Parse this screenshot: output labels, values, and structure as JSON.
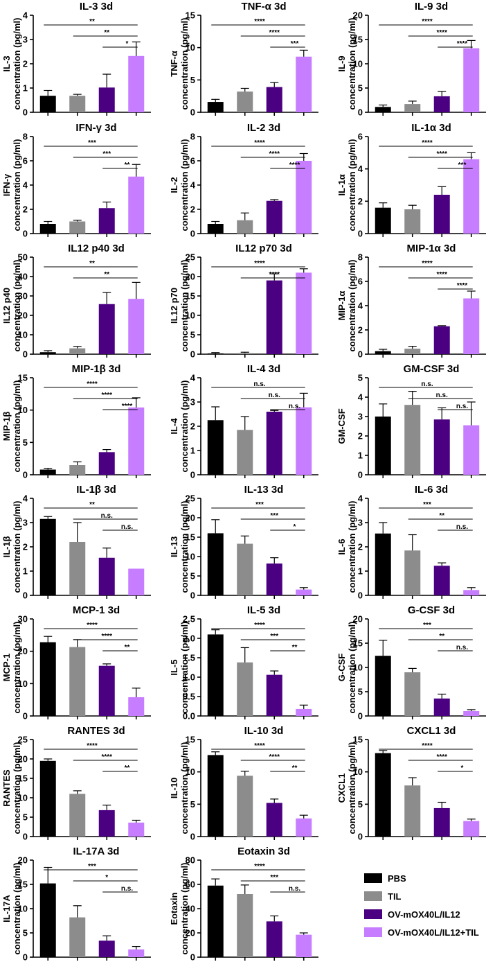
{
  "legend": [
    {
      "label": "PBS",
      "color": "#000000"
    },
    {
      "label": "TIL",
      "color": "#8c8c8c"
    },
    {
      "label": "OV-mOX40L/IL12",
      "color": "#4b0082"
    },
    {
      "label": "OV-mOX40L/IL12+TIL",
      "color": "#c77dff"
    }
  ],
  "chart_data": [
    {
      "type": "bar",
      "title": "IL-3 3d",
      "ylabel": [
        "IL-3",
        "concentration (pg/ml)"
      ],
      "categories": [
        "PBS",
        "TIL",
        "OV-mOX40L/IL12",
        "OV-mOX40L/IL12+TIL"
      ],
      "ylim": [
        0,
        4
      ],
      "yticks": [
        0,
        1,
        2,
        3,
        4
      ],
      "values": [
        0.68,
        0.68,
        1.02,
        2.32
      ],
      "errors": [
        0.22,
        0.06,
        0.55,
        0.58
      ],
      "sig": [
        {
          "from": 0,
          "to": 3,
          "label": "**"
        },
        {
          "from": 1,
          "to": 3,
          "label": "**"
        },
        {
          "from": 2,
          "to": 3,
          "label": "*"
        }
      ]
    },
    {
      "type": "bar",
      "title": "TNF-α 3d",
      "ylabel": [
        "TNF-α",
        "concentration (pg/ml)"
      ],
      "categories": [
        "PBS",
        "TIL",
        "OV-mOX40L/IL12",
        "OV-mOX40L/IL12+TIL"
      ],
      "ylim": [
        0,
        15
      ],
      "yticks": [
        0,
        5,
        10,
        15
      ],
      "values": [
        1.6,
        3.2,
        3.9,
        8.6
      ],
      "errors": [
        0.4,
        0.5,
        0.7,
        1.0
      ],
      "sig": [
        {
          "from": 0,
          "to": 3,
          "label": "****"
        },
        {
          "from": 1,
          "to": 3,
          "label": "****"
        },
        {
          "from": 2,
          "to": 3,
          "label": "***"
        }
      ]
    },
    {
      "type": "bar",
      "title": "IL-9 3d",
      "ylabel": [
        "IL-9",
        "concentration (pg/ml)"
      ],
      "categories": [
        "PBS",
        "TIL",
        "OV-mOX40L/IL12",
        "OV-mOX40L/IL12+TIL"
      ],
      "ylim": [
        0,
        20
      ],
      "yticks": [
        0,
        5,
        10,
        15,
        20
      ],
      "values": [
        1.1,
        1.7,
        3.3,
        13.2
      ],
      "errors": [
        0.4,
        0.6,
        1.0,
        1.6
      ],
      "sig": [
        {
          "from": 0,
          "to": 3,
          "label": "****"
        },
        {
          "from": 1,
          "to": 3,
          "label": "****"
        },
        {
          "from": 2,
          "to": 3,
          "label": "****"
        }
      ]
    },
    {
      "type": "bar",
      "title": "IFN-γ 3d",
      "ylabel": [
        "IFN-γ",
        "concentration (pg/ml)"
      ],
      "categories": [
        "PBS",
        "TIL",
        "OV-mOX40L/IL12",
        "OV-mOX40L/IL12+TIL"
      ],
      "ylim": [
        0,
        8
      ],
      "yticks": [
        0,
        2,
        4,
        6,
        8
      ],
      "values": [
        0.8,
        1.0,
        2.1,
        4.7
      ],
      "errors": [
        0.2,
        0.1,
        0.5,
        1.0
      ],
      "sig": [
        {
          "from": 0,
          "to": 3,
          "label": "***"
        },
        {
          "from": 1,
          "to": 3,
          "label": "***"
        },
        {
          "from": 2,
          "to": 3,
          "label": "**"
        }
      ]
    },
    {
      "type": "bar",
      "title": "IL-2 3d",
      "ylabel": [
        "IL-2",
        "concentration (pg/ml)"
      ],
      "categories": [
        "PBS",
        "TIL",
        "OV-mOX40L/IL12",
        "OV-mOX40L/IL12+TIL"
      ],
      "ylim": [
        0,
        8
      ],
      "yticks": [
        0,
        2,
        4,
        6,
        8
      ],
      "values": [
        0.8,
        1.1,
        2.7,
        6.0
      ],
      "errors": [
        0.2,
        0.6,
        0.1,
        0.6
      ],
      "sig": [
        {
          "from": 0,
          "to": 3,
          "label": "****"
        },
        {
          "from": 1,
          "to": 3,
          "label": "****"
        },
        {
          "from": 2,
          "to": 3,
          "label": "****"
        }
      ]
    },
    {
      "type": "bar",
      "title": "IL-1α 3d",
      "ylabel": [
        "IL-1α",
        "concentration (pg/ml)"
      ],
      "categories": [
        "PBS",
        "TIL",
        "OV-mOX40L/IL12",
        "OV-mOX40L/IL12+TIL"
      ],
      "ylim": [
        0,
        6
      ],
      "yticks": [
        0,
        2,
        4,
        6
      ],
      "values": [
        1.6,
        1.5,
        2.4,
        4.6
      ],
      "errors": [
        0.3,
        0.25,
        0.5,
        0.4
      ],
      "sig": [
        {
          "from": 0,
          "to": 3,
          "label": "****"
        },
        {
          "from": 1,
          "to": 3,
          "label": "****"
        },
        {
          "from": 2,
          "to": 3,
          "label": "***"
        }
      ]
    },
    {
      "type": "bar",
      "title": "IL12 p40 3d",
      "ylabel": [
        "IL12 p40",
        "concentration (pg/ml)"
      ],
      "categories": [
        "PBS",
        "TIL",
        "OV-mOX40L/IL12",
        "OV-mOX40L/IL12+TIL"
      ],
      "ylim": [
        0,
        50
      ],
      "yticks": [
        0,
        10,
        20,
        30,
        40,
        50
      ],
      "values": [
        1.0,
        3.0,
        25.8,
        28.5
      ],
      "errors": [
        0.8,
        1.0,
        6.0,
        8.5
      ],
      "sig": [
        {
          "from": 0,
          "to": 3,
          "label": "**"
        },
        {
          "from": 1,
          "to": 3,
          "label": "**"
        }
      ]
    },
    {
      "type": "bar",
      "title": "IL12 p70 3d",
      "ylabel": [
        "IL12 p70",
        "concentration (pg/ml)"
      ],
      "categories": [
        "PBS",
        "TIL",
        "OV-mOX40L/IL12",
        "OV-mOX40L/IL12+TIL"
      ],
      "ylim": [
        0,
        25
      ],
      "yticks": [
        0,
        5,
        10,
        15,
        20,
        25
      ],
      "values": [
        0.2,
        0.3,
        19.0,
        21.0
      ],
      "errors": [
        0.2,
        0.2,
        1.7,
        1.0
      ],
      "sig": [
        {
          "from": 0,
          "to": 3,
          "label": "****"
        },
        {
          "from": 1,
          "to": 3,
          "label": "****"
        }
      ]
    },
    {
      "type": "bar",
      "title": "MIP-1α 3d",
      "ylabel": [
        "MIP-1α",
        "concentration (pg/ml)"
      ],
      "categories": [
        "PBS",
        "TIL",
        "OV-mOX40L/IL12",
        "OV-mOX40L/IL12+TIL"
      ],
      "ylim": [
        0,
        8
      ],
      "yticks": [
        0,
        2,
        4,
        6,
        8
      ],
      "values": [
        0.25,
        0.45,
        2.3,
        4.6
      ],
      "errors": [
        0.15,
        0.2,
        0.05,
        0.6
      ],
      "sig": [
        {
          "from": 0,
          "to": 3,
          "label": "****"
        },
        {
          "from": 1,
          "to": 3,
          "label": "****"
        },
        {
          "from": 2,
          "to": 3,
          "label": "****"
        }
      ]
    },
    {
      "type": "bar",
      "title": "MIP-1β 3d",
      "ylabel": [
        "MIP-1β",
        "concentration (pg/ml)"
      ],
      "categories": [
        "PBS",
        "TIL",
        "OV-mOX40L/IL12",
        "OV-mOX40L/IL12+TIL"
      ],
      "ylim": [
        0,
        15
      ],
      "yticks": [
        0,
        5,
        10,
        15
      ],
      "values": [
        0.8,
        1.5,
        3.5,
        10.4
      ],
      "errors": [
        0.2,
        0.5,
        0.4,
        1.5
      ],
      "sig": [
        {
          "from": 0,
          "to": 3,
          "label": "****"
        },
        {
          "from": 1,
          "to": 3,
          "label": "****"
        },
        {
          "from": 2,
          "to": 3,
          "label": "****"
        }
      ]
    },
    {
      "type": "bar",
      "title": "IL-4 3d",
      "ylabel": [
        "IL-4",
        "concentration (pg/ml)"
      ],
      "categories": [
        "PBS",
        "TIL",
        "OV-mOX40L/IL12",
        "OV-mOX40L/IL12+TIL"
      ],
      "ylim": [
        0,
        4
      ],
      "yticks": [
        0,
        1,
        2,
        3,
        4
      ],
      "values": [
        2.25,
        1.85,
        2.6,
        2.78
      ],
      "errors": [
        0.55,
        0.55,
        0.05,
        0.58
      ],
      "sig": [
        {
          "from": 0,
          "to": 3,
          "label": "n.s."
        },
        {
          "from": 1,
          "to": 3,
          "label": "n.s."
        },
        {
          "from": 2,
          "to": 3,
          "label": "n.s."
        }
      ]
    },
    {
      "type": "bar",
      "title": "GM-CSF 3d",
      "ylabel": [
        "GM-CSF",
        ""
      ],
      "categories": [
        "PBS",
        "TIL",
        "OV-mOX40L/IL12",
        "OV-mOX40L/IL12+TIL"
      ],
      "ylim": [
        0,
        5
      ],
      "yticks": [
        0,
        1,
        2,
        3,
        4,
        5
      ],
      "values": [
        3.0,
        3.6,
        2.85,
        2.55
      ],
      "errors": [
        0.65,
        0.7,
        0.6,
        1.2
      ],
      "sig": [
        {
          "from": 0,
          "to": 3,
          "label": "n.s."
        },
        {
          "from": 1,
          "to": 3,
          "label": "n.s."
        },
        {
          "from": 2,
          "to": 3,
          "label": "n.s."
        }
      ]
    },
    {
      "type": "bar",
      "title": "IL-1β 3d",
      "ylabel": [
        "IL-1β",
        "concentration (pg/ml)"
      ],
      "categories": [
        "PBS",
        "TIL",
        "OV-mOX40L/IL12",
        "OV-mOX40L/IL12+TIL"
      ],
      "ylim": [
        0,
        4
      ],
      "yticks": [
        0,
        1,
        2,
        3,
        4
      ],
      "values": [
        3.15,
        2.2,
        1.55,
        1.1
      ],
      "errors": [
        0.1,
        0.8,
        0.4,
        0.0
      ],
      "sig": [
        {
          "from": 0,
          "to": 3,
          "label": "**"
        },
        {
          "from": 1,
          "to": 3,
          "label": "n.s."
        },
        {
          "from": 2,
          "to": 3,
          "label": "n.s."
        }
      ]
    },
    {
      "type": "bar",
      "title": "IL-13 3d",
      "ylabel": [
        "IL-13",
        "concentration (pg/ml)"
      ],
      "categories": [
        "PBS",
        "TIL",
        "OV-mOX40L/IL12",
        "OV-mOX40L/IL12+TIL"
      ],
      "ylim": [
        0,
        25
      ],
      "yticks": [
        0,
        5,
        10,
        15,
        20,
        25
      ],
      "values": [
        16.0,
        13.3,
        8.2,
        1.5
      ],
      "errors": [
        3.5,
        2.0,
        1.5,
        0.5
      ],
      "sig": [
        {
          "from": 0,
          "to": 3,
          "label": "***"
        },
        {
          "from": 1,
          "to": 3,
          "label": "***"
        },
        {
          "from": 2,
          "to": 3,
          "label": "*"
        }
      ]
    },
    {
      "type": "bar",
      "title": "IL-6 3d",
      "ylabel": [
        "IL-6",
        "concentration (pg/ml)"
      ],
      "categories": [
        "PBS",
        "TIL",
        "OV-mOX40L/IL12",
        "OV-mOX40L/IL12+TIL"
      ],
      "ylim": [
        0,
        4
      ],
      "yticks": [
        0,
        1,
        2,
        3,
        4
      ],
      "values": [
        2.55,
        1.85,
        1.22,
        0.22
      ],
      "errors": [
        0.45,
        0.65,
        0.12,
        0.1
      ],
      "sig": [
        {
          "from": 0,
          "to": 3,
          "label": "***"
        },
        {
          "from": 1,
          "to": 3,
          "label": "**"
        },
        {
          "from": 2,
          "to": 3,
          "label": "n.s."
        }
      ]
    },
    {
      "type": "bar",
      "title": "MCP-1 3d",
      "ylabel": [
        "MCP-1",
        "concentration (pg/ml)"
      ],
      "categories": [
        "PBS",
        "TIL",
        "OV-mOX40L/IL12",
        "OV-mOX40L/IL12+TIL"
      ],
      "ylim": [
        0,
        30
      ],
      "yticks": [
        0,
        10,
        20,
        30
      ],
      "values": [
        22.8,
        21.3,
        15.5,
        5.8
      ],
      "errors": [
        1.8,
        2.3,
        0.6,
        2.8
      ],
      "sig": [
        {
          "from": 0,
          "to": 3,
          "label": "****"
        },
        {
          "from": 1,
          "to": 3,
          "label": "****"
        },
        {
          "from": 2,
          "to": 3,
          "label": "**"
        }
      ]
    },
    {
      "type": "bar",
      "title": "IL-5 3d",
      "ylabel": [
        "IL-5",
        "concentration (pg/ml)"
      ],
      "categories": [
        "PBS",
        "TIL",
        "OV-mOX40L/IL12",
        "OV-mOX40L/IL12+TIL"
      ],
      "ylim": [
        0,
        2.5
      ],
      "yticks": [
        0.0,
        0.5,
        1.0,
        1.5,
        2.0,
        2.5
      ],
      "tickdecimals": 1,
      "values": [
        2.1,
        1.38,
        1.06,
        0.18
      ],
      "errors": [
        0.12,
        0.38,
        0.1,
        0.1
      ],
      "sig": [
        {
          "from": 0,
          "to": 3,
          "label": "****"
        },
        {
          "from": 1,
          "to": 3,
          "label": "***"
        },
        {
          "from": 2,
          "to": 3,
          "label": "**"
        }
      ]
    },
    {
      "type": "bar",
      "title": "G-CSF 3d",
      "ylabel": [
        "G-CSF",
        "concentration (pg/ml)"
      ],
      "categories": [
        "PBS",
        "TIL",
        "OV-mOX40L/IL12",
        "OV-mOX40L/IL12+TIL"
      ],
      "ylim": [
        0,
        20
      ],
      "yticks": [
        0,
        5,
        10,
        15,
        20
      ],
      "values": [
        12.4,
        9.0,
        3.6,
        1.0
      ],
      "errors": [
        3.2,
        0.8,
        0.9,
        0.3
      ],
      "sig": [
        {
          "from": 0,
          "to": 3,
          "label": "***"
        },
        {
          "from": 1,
          "to": 3,
          "label": "**"
        },
        {
          "from": 2,
          "to": 3,
          "label": "n.s."
        }
      ]
    },
    {
      "type": "bar",
      "title": "RANTES 3d",
      "ylabel": [
        "RANTES",
        "concentration (pg/ml)"
      ],
      "categories": [
        "PBS",
        "TIL",
        "OV-mOX40L/IL12",
        "OV-mOX40L/IL12+TIL"
      ],
      "ylim": [
        0,
        25
      ],
      "yticks": [
        0,
        5,
        10,
        15,
        20,
        25
      ],
      "values": [
        19.5,
        11.0,
        6.8,
        3.6
      ],
      "errors": [
        0.5,
        0.8,
        1.3,
        0.6
      ],
      "sig": [
        {
          "from": 0,
          "to": 3,
          "label": "****"
        },
        {
          "from": 1,
          "to": 3,
          "label": "****"
        },
        {
          "from": 2,
          "to": 3,
          "label": "**"
        }
      ]
    },
    {
      "type": "bar",
      "title": "IL-10 3d",
      "ylabel": [
        "IL-10",
        "concentration (pg/ml)"
      ],
      "categories": [
        "PBS",
        "TIL",
        "OV-mOX40L/IL12",
        "OV-mOX40L/IL12+TIL"
      ],
      "ylim": [
        0,
        15
      ],
      "yticks": [
        0,
        5,
        10,
        15
      ],
      "values": [
        12.6,
        9.4,
        5.2,
        2.8
      ],
      "errors": [
        0.5,
        0.7,
        0.6,
        0.5
      ],
      "sig": [
        {
          "from": 0,
          "to": 3,
          "label": "****"
        },
        {
          "from": 1,
          "to": 3,
          "label": "****"
        },
        {
          "from": 2,
          "to": 3,
          "label": "**"
        }
      ]
    },
    {
      "type": "bar",
      "title": "CXCL1 3d",
      "ylabel": [
        "CXCL1",
        "concentration (pg/ml)"
      ],
      "categories": [
        "PBS",
        "TIL",
        "OV-mOX40L/IL12",
        "OV-mOX40L/IL12+TIL"
      ],
      "ylim": [
        0,
        15
      ],
      "yticks": [
        0,
        5,
        10,
        15
      ],
      "values": [
        12.9,
        7.9,
        4.4,
        2.4
      ],
      "errors": [
        0.4,
        1.2,
        0.9,
        0.3
      ],
      "sig": [
        {
          "from": 0,
          "to": 3,
          "label": "****"
        },
        {
          "from": 1,
          "to": 3,
          "label": "****"
        },
        {
          "from": 2,
          "to": 3,
          "label": "*"
        }
      ]
    },
    {
      "type": "bar",
      "title": "IL-17A 3d",
      "ylabel": [
        "IL-17A",
        "concentration (pg/ml)"
      ],
      "categories": [
        "PBS",
        "TIL",
        "OV-mOX40L/IL12",
        "OV-mOX40L/IL12+TIL"
      ],
      "ylim": [
        0,
        20
      ],
      "yticks": [
        0,
        5,
        10,
        15,
        20
      ],
      "values": [
        15.2,
        8.2,
        3.4,
        1.6
      ],
      "errors": [
        3.3,
        2.4,
        1.0,
        0.6
      ],
      "sig": [
        {
          "from": 0,
          "to": 3,
          "label": "***"
        },
        {
          "from": 1,
          "to": 3,
          "label": "*"
        },
        {
          "from": 2,
          "to": 3,
          "label": "n.s."
        }
      ]
    },
    {
      "type": "bar",
      "title": "Eotaxin 3d",
      "ylabel": [
        "Eotaxin",
        "concentration (pg/ml)"
      ],
      "categories": [
        "PBS",
        "TIL",
        "OV-mOX40L/IL12",
        "OV-mOX40L/IL12+TIL"
      ],
      "ylim": [
        0,
        80
      ],
      "yticks": [
        0,
        20,
        40,
        60,
        80
      ],
      "values": [
        59.0,
        52.0,
        29.5,
        18.5
      ],
      "errors": [
        5.5,
        7.5,
        4.5,
        1.5
      ],
      "sig": [
        {
          "from": 0,
          "to": 3,
          "label": "****"
        },
        {
          "from": 1,
          "to": 3,
          "label": "***"
        },
        {
          "from": 2,
          "to": 3,
          "label": "n.s."
        }
      ]
    }
  ]
}
